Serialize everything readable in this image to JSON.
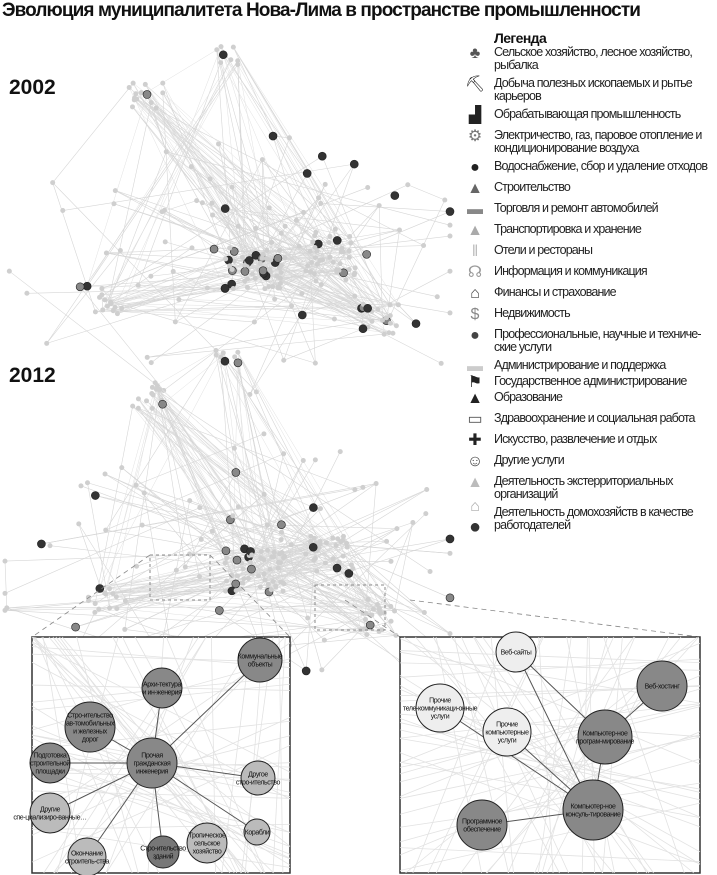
{
  "title": "Эволюция муниципалитета Нова-Лима в пространстве промышленности",
  "years": [
    "2002",
    "2012"
  ],
  "legend": {
    "title": "Легенда",
    "items": [
      {
        "icon": "trees-icon",
        "label": "Сельское хозяйство, лесное хозяйство, рыбалка",
        "color": "#555555"
      },
      {
        "icon": "pickaxe-icon",
        "label": "Добыча полезных ископаемых и рытье карьеров",
        "color": "#111111"
      },
      {
        "icon": "factory-icon",
        "label": "Обрабатывающая промышленность",
        "color": "#222222"
      },
      {
        "icon": "power-plant-icon",
        "label": "Электричество, газ, паровое отопление и кондиционирование воздуха",
        "color": "#777777"
      },
      {
        "icon": "water-drop-icon",
        "label": "Водоснабжение, сбор и удаление отходов",
        "color": "#222222"
      },
      {
        "icon": "traffic-cone-icon",
        "label": "Строительство",
        "color": "#666666"
      },
      {
        "icon": "storefront-icon",
        "label": "Торговля и ремонт автомобилей",
        "color": "#888888"
      },
      {
        "icon": "road-icon",
        "label": "Транспортировка и хранение",
        "color": "#aaaaaa"
      },
      {
        "icon": "fork-knife-icon",
        "label": "Отели и рестораны",
        "color": "#bbbbbb"
      },
      {
        "icon": "antenna-tower-icon",
        "label": "Информация и коммуникация",
        "color": "#999999"
      },
      {
        "icon": "bank-icon",
        "label": "Финансы и страхование",
        "color": "#444444"
      },
      {
        "icon": "house-dollar-icon",
        "label": "Недвижимость",
        "color": "#888888"
      },
      {
        "icon": "person-icon",
        "label": "Профессиональные, научные и техниче-ские услуги",
        "color": "#444444"
      },
      {
        "icon": "admin-desk-icon",
        "label": "Администрирование и поддержка",
        "color": "#cccccc"
      },
      {
        "icon": "government-building-icon",
        "label": "Государственное администрирование",
        "color": "#222222"
      },
      {
        "icon": "school-icon",
        "label": "Образование",
        "color": "#222222"
      },
      {
        "icon": "book-icon",
        "label": "Здравоохранение и социальная работа",
        "color": "#555555"
      },
      {
        "icon": "cross-icon",
        "label": "Искусство, развлечение и отдых",
        "color": "#222222"
      },
      {
        "icon": "theater-masks-icon",
        "label": "Другие услуги",
        "color": "#444444"
      },
      {
        "icon": "embassy-icon",
        "label": "Деятельность экстерриториальных организаций",
        "color": "#bbbbbb"
      },
      {
        "icon": "home-icon",
        "label": "Деятельность домохозяйств в качестве работодателей",
        "color": "#aaaaaa"
      },
      {
        "icon": "globe-icon",
        "label": "",
        "color": "#333333"
      }
    ]
  },
  "inset_left": {
    "nodes": [
      {
        "label": "Коммунальные объекты",
        "color": "#888888"
      },
      {
        "label": "Архи-тектура и ин-женерия",
        "color": "#888888"
      },
      {
        "label": "Стро-ительство ав-томобильных и железных дорог",
        "color": "#888888"
      },
      {
        "label": "Подготовка строительной площадки",
        "color": "#888888"
      },
      {
        "label": "Прочая гражданская инженерия",
        "color": "#888888"
      },
      {
        "label": "Другое стро-ительство",
        "color": "#bbbbbb"
      },
      {
        "label": "Другие спе-циализиро-ванные…",
        "color": "#bbbbbb"
      },
      {
        "label": "Корабли",
        "color": "#bbbbbb"
      },
      {
        "label": "Окончание строитель-ства",
        "color": "#bbbbbb"
      },
      {
        "label": "Стро-ительство зданий",
        "color": "#777777"
      },
      {
        "label": "Тропическое сельское хозяйство",
        "color": "#bbbbbb"
      }
    ]
  },
  "inset_right": {
    "nodes": [
      {
        "label": "Веб-сайты",
        "color": "#eeeeee"
      },
      {
        "label": "Веб-хостинг",
        "color": "#888888"
      },
      {
        "label": "Прочие теле-коммуникаци-онные услуги",
        "color": "#eeeeee"
      },
      {
        "label": "Прочие компьютерные услуги",
        "color": "#eeeeee"
      },
      {
        "label": "Компьютер-ное програм-мирование",
        "color": "#888888"
      },
      {
        "label": "Компьютер-ное консуль-тирование",
        "color": "#888888"
      },
      {
        "label": "Программное обеспечение",
        "color": "#888888"
      }
    ]
  }
}
